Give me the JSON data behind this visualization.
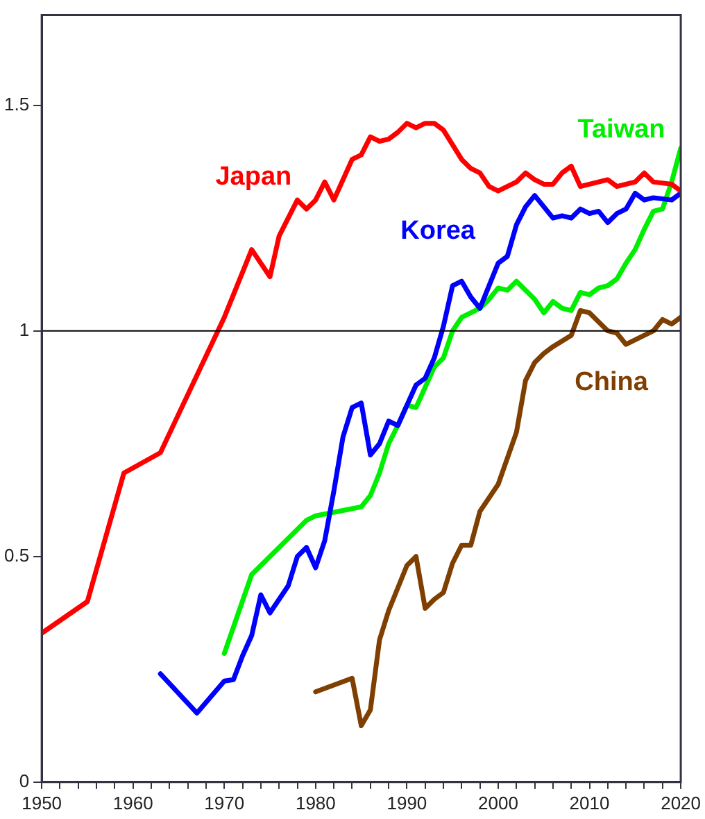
{
  "chart_data": {
    "type": "line",
    "xlim": [
      1950,
      2020
    ],
    "ylim": [
      0,
      1.7
    ],
    "xticks": [
      1950,
      {
        "value": 1952,
        "label": null
      },
      {
        "value": 1954,
        "label": null
      },
      {
        "value": 1956,
        "label": null
      },
      {
        "value": 1958,
        "label": null
      },
      1960,
      {
        "value": 1962,
        "label": null
      },
      {
        "value": 1964,
        "label": null
      },
      {
        "value": 1966,
        "label": null
      },
      {
        "value": 1968,
        "label": null
      },
      1970,
      {
        "value": 1972,
        "label": null
      },
      {
        "value": 1974,
        "label": null
      },
      {
        "value": 1976,
        "label": null
      },
      {
        "value": 1978,
        "label": null
      },
      1980,
      {
        "value": 1982,
        "label": null
      },
      {
        "value": 1984,
        "label": null
      },
      {
        "value": 1986,
        "label": null
      },
      {
        "value": 1988,
        "label": null
      },
      1990,
      {
        "value": 1992,
        "label": null
      },
      {
        "value": 1994,
        "label": null
      },
      {
        "value": 1996,
        "label": null
      },
      {
        "value": 1998,
        "label": null
      },
      2000,
      {
        "value": 2002,
        "label": null
      },
      {
        "value": 2004,
        "label": null
      },
      {
        "value": 2006,
        "label": null
      },
      {
        "value": 2008,
        "label": null
      },
      2010,
      {
        "value": 2012,
        "label": null
      },
      {
        "value": 2014,
        "label": null
      },
      {
        "value": 2016,
        "label": null
      },
      {
        "value": 2018,
        "label": null
      },
      2020
    ],
    "yticks": [
      0,
      0.5,
      1,
      1.5
    ],
    "grid": false,
    "legend": false,
    "marker": "none",
    "line_style": "solid",
    "ref_lines": [
      {
        "axis": "y",
        "value": 1,
        "color": "#000000"
      }
    ],
    "series": [
      {
        "name": "Japan",
        "color": "#ff0000",
        "x": [
          1950,
          1955,
          1959,
          1963,
          1970,
          1973,
          1975,
          1976,
          1978,
          1979,
          1980,
          1981,
          1982,
          1984,
          1985,
          1986,
          1987,
          1988,
          1989,
          1990,
          1991,
          1992,
          1993,
          1994,
          1996,
          1997,
          1998,
          1999,
          2000,
          2002,
          2003,
          2004,
          2005,
          2006,
          2007,
          2008,
          2009,
          2010,
          2012,
          2013,
          2015,
          2016,
          2017,
          2019,
          2020
        ],
        "values": [
          0.33,
          0.4,
          0.685,
          0.73,
          1.03,
          1.18,
          1.12,
          1.21,
          1.29,
          1.27,
          1.29,
          1.33,
          1.29,
          1.38,
          1.39,
          1.43,
          1.42,
          1.425,
          1.44,
          1.46,
          1.45,
          1.46,
          1.46,
          1.445,
          1.38,
          1.36,
          1.35,
          1.32,
          1.31,
          1.33,
          1.35,
          1.335,
          1.325,
          1.325,
          1.35,
          1.365,
          1.32,
          1.325,
          1.335,
          1.32,
          1.33,
          1.35,
          1.33,
          1.325,
          1.31
        ]
      },
      {
        "name": "Korea",
        "color": "#0000ff",
        "x": [
          1963,
          1967,
          1970,
          1971,
          1972,
          1973,
          1974,
          1975,
          1977,
          1978,
          1979,
          1980,
          1981,
          1982,
          1983,
          1984,
          1985,
          1986,
          1987,
          1988,
          1989,
          1990,
          1991,
          1992,
          1993,
          1994,
          1995,
          1996,
          1997,
          1998,
          1999,
          2000,
          2001,
          2002,
          2003,
          2004,
          2005,
          2006,
          2007,
          2008,
          2009,
          2010,
          2011,
          2012,
          2013,
          2014,
          2015,
          2016,
          2017,
          2019,
          2020
        ],
        "values": [
          0.24,
          0.153,
          0.224,
          0.227,
          0.28,
          0.325,
          0.415,
          0.375,
          0.435,
          0.5,
          0.52,
          0.475,
          0.535,
          0.645,
          0.765,
          0.83,
          0.84,
          0.725,
          0.75,
          0.8,
          0.79,
          0.835,
          0.88,
          0.895,
          0.94,
          1.01,
          1.1,
          1.11,
          1.075,
          1.05,
          1.1,
          1.15,
          1.165,
          1.235,
          1.275,
          1.3,
          1.275,
          1.25,
          1.255,
          1.25,
          1.27,
          1.26,
          1.265,
          1.24,
          1.26,
          1.27,
          1.305,
          1.29,
          1.295,
          1.29,
          1.305
        ]
      },
      {
        "name": "Taiwan",
        "color": "#00ee00",
        "x": [
          1970,
          1973,
          1979,
          1980,
          1985,
          1986,
          1987,
          1988,
          1989,
          1990,
          1991,
          1992,
          1993,
          1994,
          1995,
          1996,
          1998,
          1999,
          2000,
          2001,
          2002,
          2004,
          2005,
          2006,
          2007,
          2008,
          2009,
          2010,
          2011,
          2012,
          2013,
          2014,
          2015,
          2016,
          2017,
          2018,
          2019,
          2020
        ],
        "values": [
          0.285,
          0.46,
          0.58,
          0.59,
          0.61,
          0.635,
          0.685,
          0.75,
          0.79,
          0.835,
          0.83,
          0.875,
          0.92,
          0.94,
          1.0,
          1.03,
          1.05,
          1.07,
          1.095,
          1.09,
          1.11,
          1.07,
          1.04,
          1.065,
          1.05,
          1.045,
          1.085,
          1.08,
          1.095,
          1.1,
          1.115,
          1.15,
          1.18,
          1.225,
          1.265,
          1.27,
          1.33,
          1.405
        ]
      },
      {
        "name": "China",
        "color": "#7f3f00",
        "x": [
          1980,
          1984,
          1985,
          1986,
          1987,
          1988,
          1990,
          1991,
          1992,
          1993,
          1994,
          1995,
          1996,
          1997,
          1998,
          2000,
          2002,
          2003,
          2004,
          2005,
          2006,
          2008,
          2009,
          2010,
          2011,
          2012,
          2013,
          2014,
          2015,
          2016,
          2017,
          2018,
          2019,
          2020
        ],
        "values": [
          0.2,
          0.23,
          0.125,
          0.16,
          0.315,
          0.38,
          0.48,
          0.5,
          0.385,
          0.405,
          0.42,
          0.485,
          0.525,
          0.525,
          0.6,
          0.66,
          0.775,
          0.89,
          0.93,
          0.95,
          0.965,
          0.99,
          1.045,
          1.04,
          1.02,
          1.0,
          0.995,
          0.97,
          0.98,
          0.99,
          1.0,
          1.025,
          1.015,
          1.03
        ]
      }
    ]
  }
}
